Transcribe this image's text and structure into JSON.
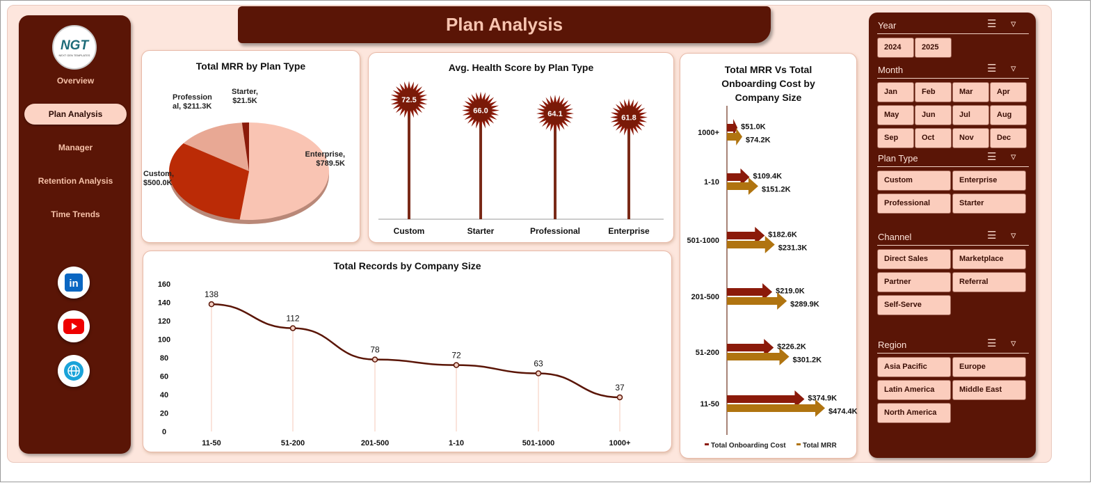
{
  "title": "Plan Analysis",
  "sidebar": {
    "logo": "NGT",
    "logo_sub": "NEXT GEN TEMPLATES",
    "items": [
      {
        "label": "Overview"
      },
      {
        "label": "Plan Analysis",
        "active": true
      },
      {
        "label": "Manager"
      },
      {
        "label": "Retention Analysis"
      },
      {
        "label": "Time Trends"
      }
    ],
    "social": [
      "linkedin-icon",
      "youtube-icon",
      "globe-icon"
    ]
  },
  "colors": {
    "maroon": "#5a1506",
    "pink": "#fbcdbd",
    "bg": "#fde6dd",
    "cost": "#8b1a0a",
    "mrr": "#b07410"
  },
  "chart_data": [
    {
      "type": "pie",
      "title": "Total MRR by Plan Type",
      "categories": [
        "Enterprise",
        "Custom",
        "Professional",
        "Starter"
      ],
      "values": [
        789.5,
        500.0,
        211.3,
        21.5
      ],
      "labels": [
        "Enterprise, $789.5K",
        "Custom, $500.0K",
        "Profession al, $211.3K",
        "Starter, $21.5K"
      ],
      "colors": [
        "#f9c4b3",
        "#bb2b06",
        "#e8a894",
        "#8b1a0a"
      ]
    },
    {
      "type": "lollipop",
      "title": "Avg. Health Score by Plan Type",
      "categories": [
        "Custom",
        "Starter",
        "Professional",
        "Enterprise"
      ],
      "values": [
        72.5,
        66.0,
        64.1,
        61.8
      ],
      "labels": [
        "72.5",
        "66.0",
        "64.1",
        "61.8"
      ]
    },
    {
      "type": "line",
      "title": "Total Records by Company Size",
      "categories": [
        "11-50",
        "51-200",
        "201-500",
        "1-10",
        "501-1000",
        "1000+"
      ],
      "values": [
        138,
        112,
        78,
        72,
        63,
        37
      ],
      "ylim": [
        0,
        160
      ],
      "yticks": [
        "0",
        "20",
        "40",
        "60",
        "80",
        "100",
        "120",
        "140",
        "160"
      ]
    },
    {
      "type": "bar",
      "title": "Total MRR Vs Total Onboarding Cost by Company Size",
      "categories": [
        "1000+",
        "1-10",
        "501-1000",
        "201-500",
        "51-200",
        "11-50"
      ],
      "series": [
        {
          "name": "Total Onboarding Cost",
          "values": [
            51.0,
            109.4,
            182.6,
            219.0,
            226.2,
            374.9
          ],
          "labels": [
            "$51.0K",
            "$109.4K",
            "$182.6K",
            "$219.0K",
            "$226.2K",
            "$374.9K"
          ]
        },
        {
          "name": "Total MRR",
          "values": [
            74.2,
            151.2,
            231.3,
            289.9,
            301.2,
            474.4
          ],
          "labels": [
            "$74.2K",
            "$151.2K",
            "$231.3K",
            "$289.9K",
            "$301.2K",
            "$474.4K"
          ]
        }
      ],
      "legend": "bottom"
    }
  ],
  "slicers": [
    {
      "title": "Year",
      "items": [
        "2024",
        "2025"
      ]
    },
    {
      "title": "Month",
      "items": [
        "Jan",
        "Feb",
        "Mar",
        "Apr",
        "May",
        "Jun",
        "Jul",
        "Aug",
        "Sep",
        "Oct",
        "Nov",
        "Dec"
      ]
    },
    {
      "title": "Plan Type",
      "items": [
        "Custom",
        "Enterprise",
        "Professional",
        "Starter"
      ]
    },
    {
      "title": "Channel",
      "items": [
        "Direct Sales",
        "Marketplace",
        "Partner",
        "Referral",
        "Self-Serve"
      ]
    },
    {
      "title": "Region",
      "items": [
        "Asia Pacific",
        "Europe",
        "Latin America",
        "Middle East",
        "North America"
      ]
    }
  ]
}
